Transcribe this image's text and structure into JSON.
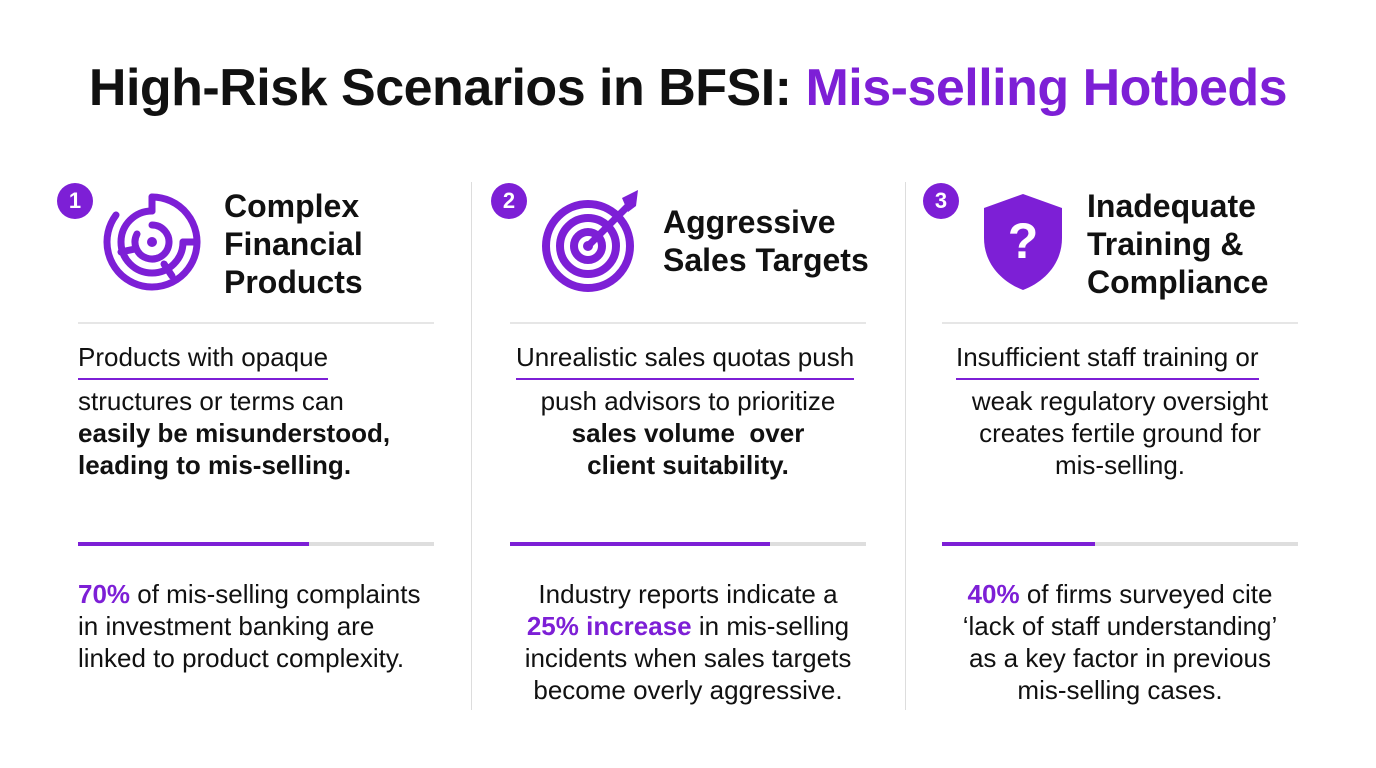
{
  "title": {
    "main": "High-Risk Scenarios in BFSI: ",
    "accent": "Mis-selling Hotbeds"
  },
  "colors": {
    "accent": "#7d1fd6",
    "text": "#111111",
    "rule": "#e6e6e6",
    "track": "#dedede"
  },
  "columns": [
    {
      "number": "1",
      "icon": "maze-icon",
      "heading": [
        "Complex",
        "Financial",
        "Products"
      ],
      "intro": "Products with opaque",
      "desc_lines": [
        {
          "text": "structures or terms can",
          "bold": false
        },
        {
          "text": "easily be misunderstood,",
          "bold": true
        },
        {
          "text": "leading to mis-selling.",
          "bold": true
        }
      ],
      "progress": 0.65,
      "stat": {
        "pre": "",
        "highlight": "70%",
        "post": " of mis-selling complaints",
        "lines": [
          "in investment banking are",
          "linked to product complexity."
        ]
      }
    },
    {
      "number": "2",
      "icon": "target-arrow-icon",
      "heading": [
        "Aggressive",
        "Sales Targets"
      ],
      "intro": "Unrealistic sales quotas push",
      "desc_lines": [
        {
          "text": "push advisors to prioritize",
          "bold": false
        },
        {
          "text": "sales volume  over",
          "bold": true
        },
        {
          "text": "client suitability.",
          "bold": true
        }
      ],
      "progress": 0.73,
      "stat": {
        "first_line": "Industry reports indicate a",
        "highlight": "25% increase",
        "post": " in mis-selling",
        "lines": [
          "incidents when sales targets",
          "become overly aggressive."
        ]
      }
    },
    {
      "number": "3",
      "icon": "shield-question-icon",
      "heading": [
        "Inadequate",
        "Training &",
        "Compliance"
      ],
      "intro": "Insufficient staff training or",
      "desc_lines": [
        {
          "text": "weak regulatory oversight",
          "bold": false
        },
        {
          "text": "creates fertile ground for",
          "bold": false
        },
        {
          "text": "mis-selling.",
          "bold": false
        }
      ],
      "progress": 0.43,
      "stat": {
        "pre": "",
        "highlight": "40%",
        "post": " of firms surveyed cite",
        "lines": [
          "‘lack of staff understanding’",
          "as a key factor in previous",
          "mis-selling cases."
        ]
      }
    }
  ]
}
